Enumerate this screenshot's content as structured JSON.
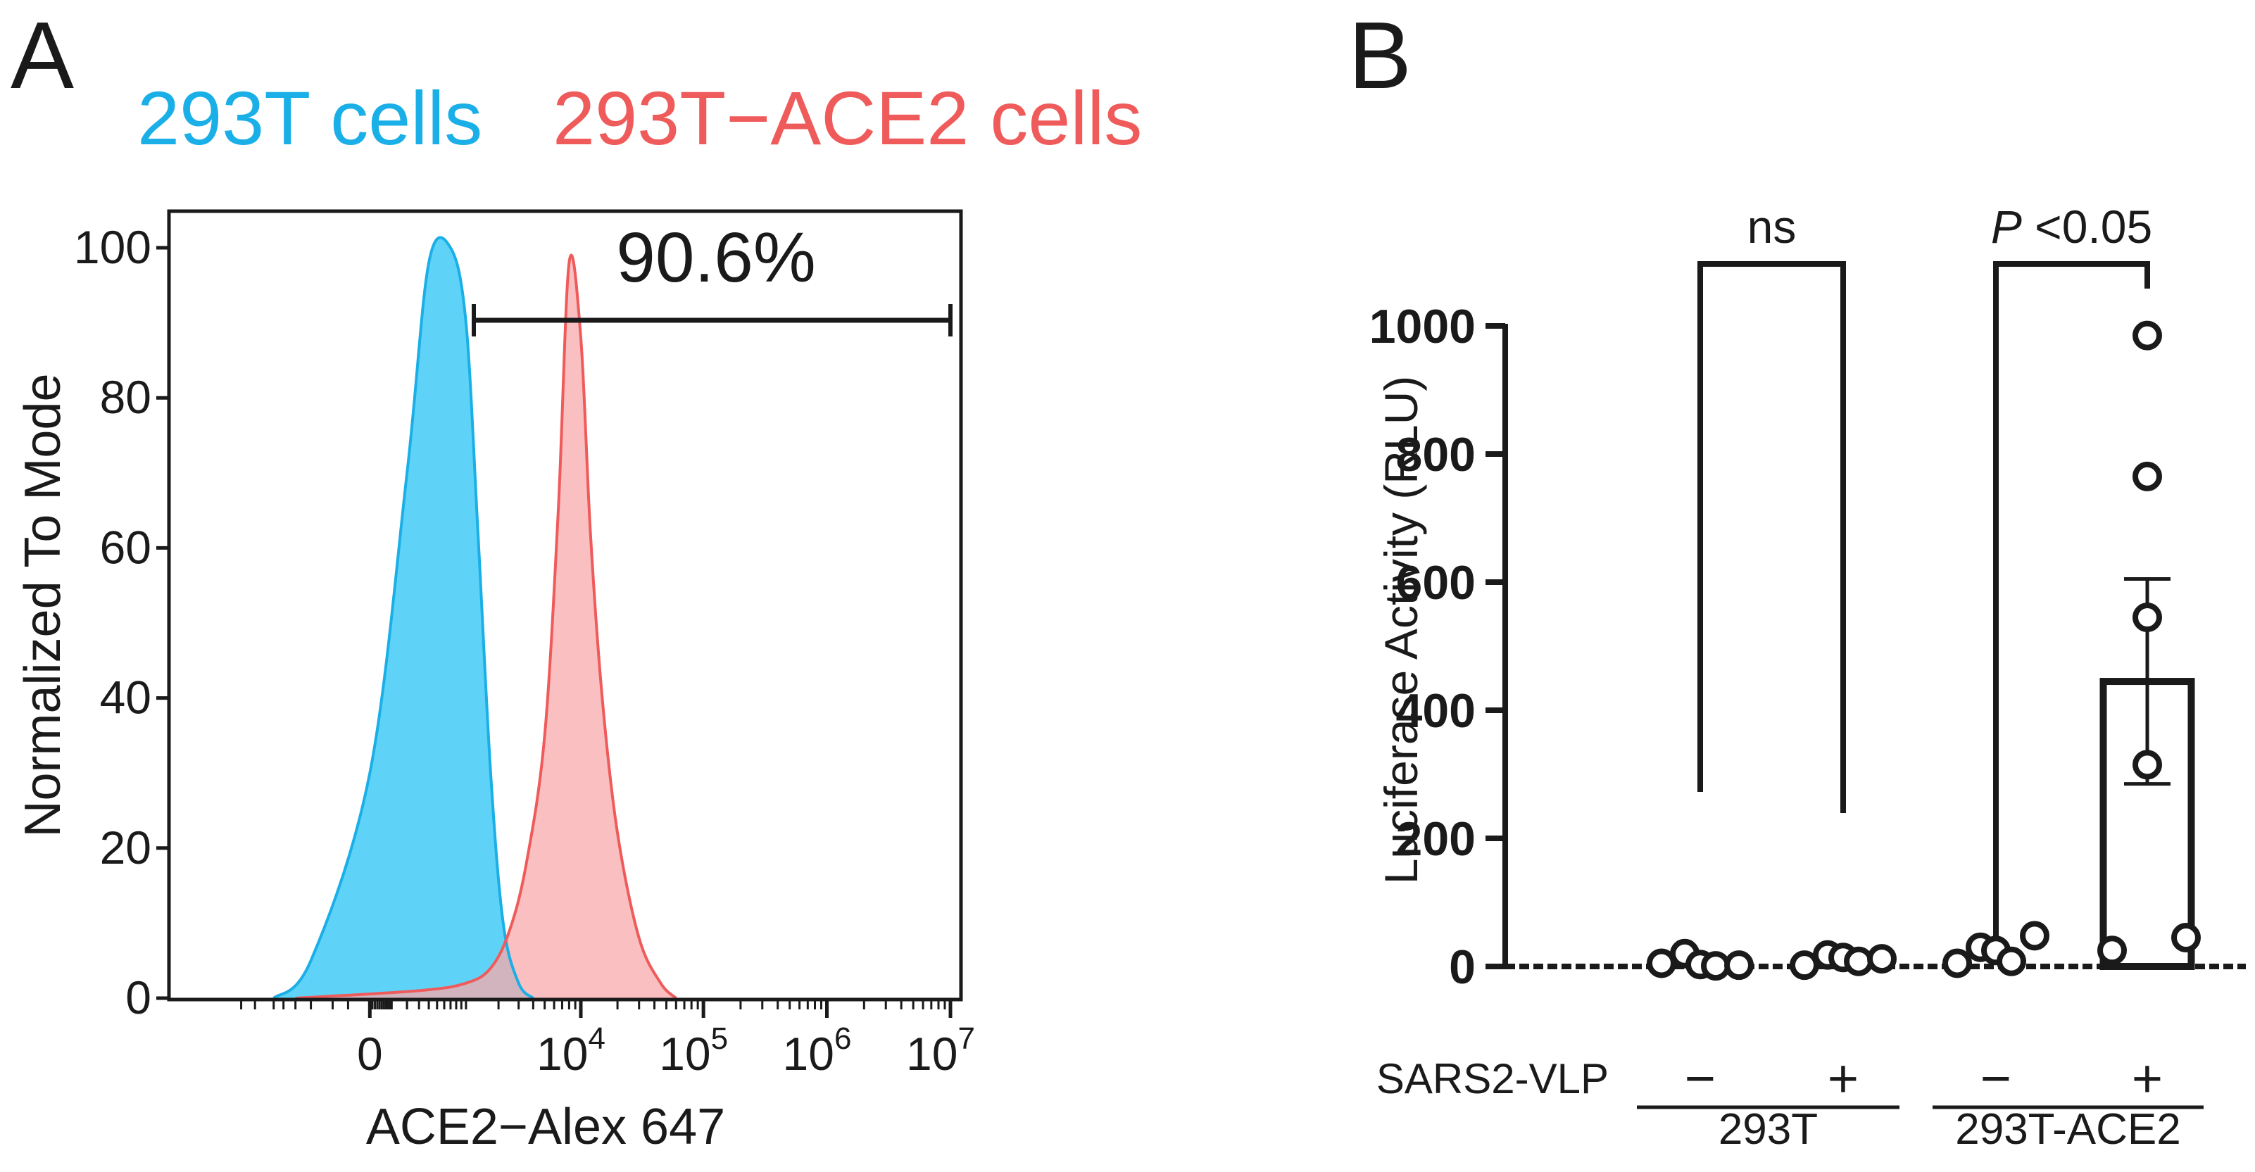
{
  "panels": {
    "a_letter": "A",
    "b_letter": "B"
  },
  "colors": {
    "blue": "#1aafe6",
    "blue_fill": "#5fd3f7",
    "red": "#ef5b5b",
    "red_fill": "#f8a9ab",
    "black": "#1a1a1a"
  },
  "chart_data": [
    {
      "type": "area",
      "panel": "A",
      "title_series": [
        "293T cells",
        "293T−ACE2 cells"
      ],
      "ylabel": "Normalized To Mode",
      "xlabel": "ACE2−Alex 647",
      "ylim": [
        0,
        100
      ],
      "y_ticks": [
        0,
        20,
        40,
        60,
        80,
        100
      ],
      "x_tick_labels": [
        {
          "base": "0",
          "exp": ""
        },
        {
          "base": "10",
          "exp": "4"
        },
        {
          "base": "10",
          "exp": "5"
        },
        {
          "base": "10",
          "exp": "6"
        },
        {
          "base": "10",
          "exp": "7"
        }
      ],
      "gate": {
        "label": "90.6%",
        "x_range": [
          1000,
          9000000
        ]
      },
      "series": [
        {
          "name": "293T cells",
          "color": "#1aafe6",
          "x": [
            -1000,
            -400,
            0,
            200,
            400,
            700,
            1000,
            1300,
            1700,
            2200,
            3000,
            4000
          ],
          "values": [
            0,
            5,
            30,
            70,
            98,
            100,
            90,
            62,
            30,
            10,
            2,
            0
          ]
        },
        {
          "name": "293T−ACE2 cells",
          "color": "#ef5b5b",
          "x": [
            -600,
            300,
            1000,
            1700,
            2500,
            3500,
            5000,
            6500,
            8000,
            10000,
            12000,
            15000,
            20000,
            30000,
            45000,
            60000
          ],
          "values": [
            0,
            1,
            2,
            4,
            9,
            18,
            35,
            65,
            98,
            88,
            62,
            40,
            22,
            8,
            2,
            0
          ]
        }
      ]
    },
    {
      "type": "bar",
      "panel": "B",
      "ylabel": "Luciferase Activity (RLU)",
      "ylim": [
        0,
        1000
      ],
      "y_ticks": [
        0,
        200,
        400,
        600,
        800,
        1000
      ],
      "row_label": "SARS2-VLP",
      "categories": [
        "−",
        "+",
        "−",
        "+"
      ],
      "groups": [
        {
          "name": "293T",
          "categories": [
            0,
            1
          ]
        },
        {
          "name": "293T-ACE2",
          "categories": [
            2,
            3
          ]
        }
      ],
      "means": [
        5,
        12,
        25,
        445
      ],
      "sem": [
        0,
        0,
        0,
        160
      ],
      "points": [
        [
          5,
          20,
          3,
          1,
          2
        ],
        [
          2,
          18,
          14,
          8,
          12
        ],
        [
          5,
          30,
          25,
          8,
          48
        ],
        [
          985,
          765,
          545,
          315,
          25,
          45
        ]
      ],
      "comparisons": [
        {
          "label": "ns",
          "italic": "",
          "between": [
            0,
            1
          ]
        },
        {
          "label": " <0.05",
          "italic": "P",
          "between": [
            2,
            3
          ]
        }
      ]
    }
  ]
}
